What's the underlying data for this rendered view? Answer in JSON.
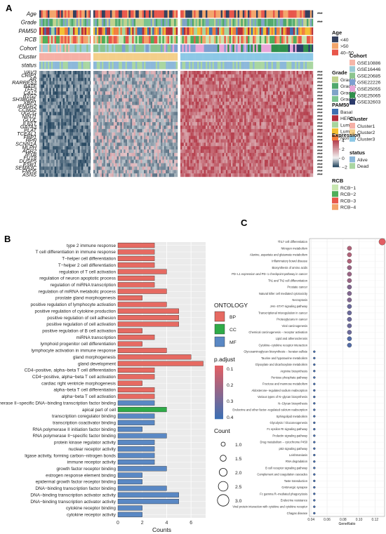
{
  "panel_labels": {
    "a": "A",
    "b": "B",
    "c": "C"
  },
  "chart_data": [
    {
      "type": "heatmap",
      "panel": "A",
      "annotations": [
        "Age",
        "Grade",
        "PAM50",
        "RCB",
        "Cohort",
        "Cluster",
        "status"
      ],
      "annotation_significance": [
        "***",
        "***",
        "",
        "",
        "",
        "",
        ""
      ],
      "genes": [
        "VAV3",
        "CRIP1",
        "AR",
        "RARRES3",
        "BATF",
        "TFF3",
        "CA12",
        "BTG2",
        "SH3BGRL",
        "XBP1",
        "IFNGR2",
        "CCNG2",
        "UGCG",
        "NINJ1",
        "GLUL",
        "IL6ST",
        "GATA3",
        "PLAT",
        "TCEAL1",
        "FBP1",
        "HPN",
        "SCNN1A",
        "MLPH",
        "AGR2",
        "MYB",
        "FUT8",
        "DUSP5",
        "ESR1",
        "SEMA3C",
        "FMO5",
        "ASNS"
      ],
      "gene_significance": "***",
      "cluster_order": [
        "Cluster1",
        "Cluster2",
        "Cluster3"
      ],
      "cluster_expression_level": {
        "Cluster1": -1.2,
        "Cluster2": -0.4,
        "Cluster3": 1.5
      },
      "legends": {
        "age": {
          "title": "Age",
          "items": [
            {
              "label": "<40",
              "color": "#34405e"
            },
            {
              "label": ">50",
              "color": "#f3a56b"
            },
            {
              "label": "40–50",
              "color": "#e8574b"
            }
          ]
        },
        "grade": {
          "title": "Grade",
          "items": [
            {
              "label": "Grade1",
              "color": "#c0d28e"
            },
            {
              "label": "Grade2",
              "color": "#4fa86b"
            },
            {
              "label": "Grade3",
              "color": "#7fa3c8"
            },
            {
              "label": "Grade4",
              "color": "#7bc490"
            }
          ]
        },
        "pam50": {
          "title": "PAM50",
          "items": [
            {
              "label": "Basal",
              "color": "#3e6fb0"
            },
            {
              "label": "HER2",
              "color": "#b22c3a"
            },
            {
              "label": "LumA",
              "color": "#a7d59d"
            },
            {
              "label": "LumB",
              "color": "#f3c033"
            },
            {
              "label": "Normal",
              "color": "#f27d3d"
            }
          ]
        },
        "cohort": {
          "title": "Cohort",
          "items": [
            {
              "label": "GSE10886",
              "color": "#f6b6a8"
            },
            {
              "label": "GSE16446",
              "color": "#9ccbd6"
            },
            {
              "label": "GSE20685",
              "color": "#8cc58f"
            },
            {
              "label": "GSE22226",
              "color": "#7d9fd0"
            },
            {
              "label": "GSE25055",
              "color": "#e8a6d8"
            },
            {
              "label": "GSE25065",
              "color": "#2f8f4b"
            },
            {
              "label": "GSE32603",
              "color": "#2c3b6b"
            }
          ]
        },
        "cluster": {
          "title": "Cluster",
          "items": [
            {
              "label": "Cluster1",
              "color": "#f5b0a6"
            },
            {
              "label": "Cluster2",
              "color": "#f3cf8a"
            },
            {
              "label": "Cluster3",
              "color": "#8cc8e6"
            }
          ]
        },
        "status": {
          "title": "status",
          "items": [
            {
              "label": "Alive",
              "color": "#8cb8da"
            },
            {
              "label": "Dead",
              "color": "#a9d6a1"
            }
          ]
        },
        "rcb": {
          "title": "RCB",
          "items": [
            {
              "label": "RCB−1",
              "color": "#c7e6b0"
            },
            {
              "label": "RCB−2",
              "color": "#4fae5a"
            },
            {
              "label": "RCB−3",
              "color": "#e8574b"
            },
            {
              "label": "RCB−4",
              "color": "#f3a26a"
            }
          ]
        },
        "expression": {
          "title": "Expression",
          "ticks": [
            4,
            2,
            0,
            -2
          ],
          "tick_labels": [
            "4",
            "2",
            "0",
            "−2"
          ],
          "colors": {
            "low": "#2a4a63",
            "mid": "#f1f1f1",
            "high": "#b5404e"
          }
        }
      }
    },
    {
      "type": "bar",
      "panel": "B",
      "xlabel": "Counts",
      "xticks": [
        0,
        2,
        4,
        6
      ],
      "xlim": [
        0,
        7.2
      ],
      "categories": [
        "type 2 immune response",
        "T cell differentiation in immune response",
        "T−helper cell differentiation",
        "T−helper 2 cell differentiation",
        "regulation of T cell activation",
        "regulation of neuron apoptotic process",
        "regulation of miRNA transcription",
        "regulation of miRNA metabolic process",
        "prostate gland morphogenesis",
        "positive regulation of lymphocyte activation",
        "positive regulation of cytokine production",
        "positive regulation of cell adhesion",
        "positive regulation of cell activation",
        "positive regulation of B cell activation",
        "miRNA transcription",
        "lymphoid progenitor cell differentiation",
        "lymphocyte activation in immune response",
        "gland morphogenesis",
        "gland development",
        "CD4−positive, alpha−beta T cell differentiation",
        "CD4−positive, alpha−beta T cell activation",
        "cardiac right ventricle morphogenesis",
        "alpha−beta T cell differentiation",
        "alpha−beta T cell activation",
        "RNA polymerase II−specific DNA−binding transcription factor binding",
        "apical part of cell",
        "transcription coregulator binding",
        "transcription coactivator binding",
        "RNA polymerase II initiation factor binding",
        "RNA polymerase II−specific factor binding",
        "protein kinase regulator activity",
        "nuclear receptor activity",
        "ligase activity, forming carbon−nitrogen bonds",
        "immune receptor activity",
        "growth factor receptor binding",
        "estrogen response element binding",
        "epidermal growth factor receptor binding",
        "DNA−binding transcription factor binding",
        "DNA−binding transcription activator activity",
        "DNA−binding transcription activator activity",
        "cytokine receptor binding",
        "cytokine receptor activity"
      ],
      "values": [
        3,
        3,
        3,
        3,
        4,
        3,
        3,
        4,
        2,
        4,
        5,
        5,
        5,
        2,
        3,
        2,
        4,
        6,
        7,
        3,
        3,
        2,
        3,
        3,
        3,
        4,
        3,
        3,
        2,
        4,
        3,
        3,
        3,
        3,
        4,
        2,
        2,
        4,
        5,
        5,
        2,
        2
      ],
      "ontology": [
        "BP",
        "BP",
        "BP",
        "BP",
        "BP",
        "BP",
        "BP",
        "BP",
        "BP",
        "BP",
        "BP",
        "BP",
        "BP",
        "BP",
        "BP",
        "BP",
        "BP",
        "BP",
        "BP",
        "BP",
        "BP",
        "BP",
        "BP",
        "BP",
        "MF",
        "CC",
        "MF",
        "MF",
        "MF",
        "MF",
        "MF",
        "MF",
        "MF",
        "MF",
        "MF",
        "MF",
        "MF",
        "MF",
        "MF",
        "MF",
        "MF",
        "MF"
      ],
      "legend": {
        "title": "ONTOLOGY",
        "items": [
          {
            "label": "BP",
            "color": "#e66a62"
          },
          {
            "label": "CC",
            "color": "#2fab48"
          },
          {
            "label": "MF",
            "color": "#5a88c4"
          }
        ]
      }
    },
    {
      "type": "scatter",
      "panel": "C",
      "xlabel": "GeneRatio",
      "xticks": [
        0.04,
        0.06,
        0.08,
        0.1,
        0.12
      ],
      "xtick_labels": [
        "0.04",
        "0.06",
        "0.08",
        "0.10",
        "0.12"
      ],
      "xlim": [
        0.038,
        0.132
      ],
      "terms": [
        "Th17 cell differentiation",
        "Nitrogen metabolism",
        "Alanine, aspartate and glutamate metabolism",
        "Inflammatory bowel disease",
        "Biosynthesis of amino acids",
        "PD−L1 expression and PD−1 checkpoint pathway in cancer",
        "Th1 and Th2 cell differentiation",
        "Prostate cancer",
        "Natural killer cell mediated cytotoxicity",
        "Necroptosis",
        "JAK−STAT signaling pathway",
        "Transcriptional misregulation in cancer",
        "Proteoglycans in cancer",
        "Viral carcinogenesis",
        "Chemical carcinogenesis − receptor activation",
        "Lipid and atherosclerosis",
        "Cytokine−cytokine receptor interaction",
        "Glycosaminoglycan biosynthesis − keratan sulfate",
        "Taurine and hypotaurine metabolism",
        "Glyoxylate and dicarboxylate metabolism",
        "Arginine biosynthesis",
        "Pentose phosphate pathway",
        "Fructose and mannose metabolism",
        "Aldosterone−regulated sodium reabsorption",
        "Various types of N−glycan biosynthesis",
        "N−Glycan biosynthesis",
        "Endocrine and other factor−regulated calcium reabsorption",
        "Sphingolipid metabolism",
        "Glycolysis / Gluconeogenesis",
        "Fc epsilon RI signaling pathway",
        "Prolactin signaling pathway",
        "Drug metabolism − cytochrome P450",
        "p53 signaling pathway",
        "Leishmaniasis",
        "RNA degradation",
        "B cell receptor signaling pathway",
        "Complement and coagulation cascades",
        "Taste transduction",
        "GABAergic synapse",
        "Fc gamma R−mediated phagocytosis",
        "Endocrine resistance",
        "Viral protein interaction with cytokine and cytokine receptor",
        "Chagas disease"
      ],
      "gene_ratio": [
        0.129,
        0.088,
        0.088,
        0.088,
        0.088,
        0.088,
        0.088,
        0.088,
        0.088,
        0.088,
        0.088,
        0.088,
        0.088,
        0.088,
        0.088,
        0.088,
        0.088,
        0.044,
        0.044,
        0.044,
        0.044,
        0.044,
        0.044,
        0.044,
        0.044,
        0.044,
        0.044,
        0.044,
        0.044,
        0.044,
        0.044,
        0.044,
        0.044,
        0.044,
        0.044,
        0.044,
        0.044,
        0.044,
        0.044,
        0.044,
        0.044,
        0.044,
        0.044
      ],
      "count": [
        3,
        2,
        2,
        2,
        2,
        2,
        2,
        2,
        2,
        2,
        2,
        2,
        2,
        2,
        2,
        2,
        2,
        1,
        1,
        1,
        1,
        1,
        1,
        1,
        1,
        1,
        1,
        1,
        1,
        1,
        1,
        1,
        1,
        1,
        1,
        1,
        1,
        1,
        1,
        1,
        1,
        1,
        1
      ],
      "p_adjust": [
        0.05,
        0.15,
        0.15,
        0.15,
        0.2,
        0.2,
        0.2,
        0.25,
        0.25,
        0.25,
        0.3,
        0.3,
        0.3,
        0.3,
        0.3,
        0.35,
        0.35,
        0.38,
        0.38,
        0.38,
        0.38,
        0.38,
        0.38,
        0.38,
        0.38,
        0.38,
        0.38,
        0.38,
        0.38,
        0.38,
        0.38,
        0.38,
        0.38,
        0.38,
        0.38,
        0.38,
        0.38,
        0.38,
        0.38,
        0.38,
        0.38,
        0.38,
        0.38
      ]
    }
  ],
  "shared_legends": {
    "padjust": {
      "title": "p.adjust",
      "ticks": [
        0.1,
        0.2,
        0.3,
        0.4
      ],
      "tick_labels": [
        "0.1",
        "0.2",
        "0.3",
        "0.4"
      ],
      "colors": {
        "low": "#e15e63",
        "high": "#3d6fb3"
      }
    },
    "count": {
      "title": "Count",
      "values": [
        1.0,
        1.5,
        2.0,
        2.5,
        3.0
      ],
      "labels": [
        "1.0",
        "1.5",
        "2.0",
        "2.5",
        "3.0"
      ]
    }
  }
}
